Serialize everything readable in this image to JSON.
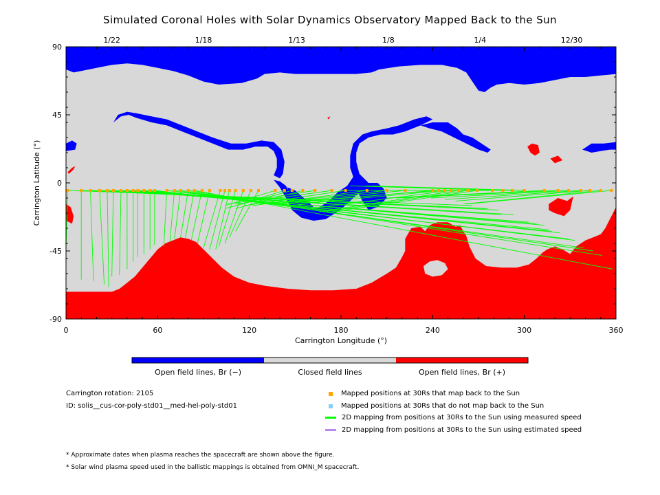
{
  "chart_data": {
    "type": "scatter",
    "title": "Simulated Coronal Holes with Solar Dynamics Observatory Mapped Back to the Sun",
    "xlabel": "Carrington Longitude (°)",
    "ylabel": "Carrington Latitude (°)",
    "xlim": [
      0,
      360
    ],
    "ylim": [
      -90,
      90
    ],
    "xticks": [
      "0",
      "60",
      "120",
      "180",
      "240",
      "300",
      "360"
    ],
    "yticks": [
      "90",
      "45",
      "0",
      "-45",
      "-90"
    ],
    "date_ticks": [
      {
        "label": "1/22",
        "lon": 30
      },
      {
        "label": "1/18",
        "lon": 90
      },
      {
        "label": "1/13",
        "lon": 151
      },
      {
        "label": "1/8",
        "lon": 211
      },
      {
        "label": "1/4",
        "lon": 271
      },
      {
        "label": "12/30",
        "lon": 331
      }
    ],
    "colors": {
      "open_negative": "#0000ff",
      "closed": "#d8d8d8",
      "open_positive": "#ff0000",
      "mapped_marker": "#ffa500",
      "unmapped_marker": "#87cefa",
      "measured_line": "#00ff00",
      "estimated_line": "#bb88ee"
    },
    "colorbar": {
      "labels": [
        "Open field lines, Br (−)",
        "Closed field lines",
        "Open field lines, Br (+)"
      ]
    },
    "series": [
      {
        "name": "Mapped positions at 30Rs that map back to the Sun",
        "marker": "square",
        "points_at_30Rs": [
          [
            1,
            -5
          ],
          [
            10,
            -5
          ],
          [
            16,
            -5
          ],
          [
            22,
            -5
          ],
          [
            27,
            -5
          ],
          [
            31,
            -5
          ],
          [
            36,
            -5
          ],
          [
            40,
            -5
          ],
          [
            44,
            -5
          ],
          [
            47,
            -5
          ],
          [
            51,
            -5
          ],
          [
            55,
            -5
          ],
          [
            58,
            -5
          ],
          [
            66,
            -5
          ],
          [
            71,
            -5
          ],
          [
            75,
            -5
          ],
          [
            80,
            -5
          ],
          [
            84,
            -5
          ],
          [
            89,
            -5
          ],
          [
            94,
            -5
          ],
          [
            101,
            -5
          ],
          [
            104,
            -5
          ],
          [
            107,
            -5
          ],
          [
            111,
            -5
          ],
          [
            116,
            -5
          ],
          [
            121,
            -5
          ],
          [
            126,
            -5
          ],
          [
            137,
            -5
          ],
          [
            143,
            -5
          ],
          [
            148,
            -5
          ],
          [
            155,
            -5
          ],
          [
            163,
            -5
          ],
          [
            174,
            -5
          ],
          [
            183,
            -5
          ],
          [
            197,
            -5
          ],
          [
            210,
            -5
          ],
          [
            222,
            -5
          ],
          [
            240,
            -5
          ],
          [
            244,
            -5
          ],
          [
            248,
            -5
          ],
          [
            252,
            -5
          ],
          [
            257,
            -5
          ],
          [
            263,
            -5
          ],
          [
            269,
            -5
          ],
          [
            279,
            -5
          ],
          [
            286,
            -5
          ],
          [
            292,
            -5
          ],
          [
            300,
            -5
          ],
          [
            313,
            -5
          ],
          [
            322,
            -5
          ],
          [
            329,
            -5
          ],
          [
            337,
            -5
          ],
          [
            343,
            -5
          ],
          [
            350,
            -5
          ],
          [
            357,
            -5
          ]
        ],
        "sun_footpoints": [
          [
            0,
            -45
          ],
          [
            10,
            -64
          ],
          [
            18,
            -65
          ],
          [
            25,
            -67
          ],
          [
            28,
            -69
          ],
          [
            30,
            -62
          ],
          [
            35,
            -61
          ],
          [
            40,
            -57
          ],
          [
            44,
            -52
          ],
          [
            47,
            -49
          ],
          [
            51,
            -47
          ],
          [
            55,
            -44
          ],
          [
            58,
            -41
          ],
          [
            64,
            -42
          ],
          [
            68,
            -39
          ],
          [
            71,
            -37
          ],
          [
            75,
            -36
          ],
          [
            78,
            -37
          ],
          [
            82,
            -38
          ],
          [
            86,
            -40
          ],
          [
            90,
            -43
          ],
          [
            94,
            -44
          ],
          [
            98,
            -44
          ],
          [
            100,
            -42
          ],
          [
            104,
            -40
          ],
          [
            107,
            -36
          ],
          [
            111,
            -32
          ],
          [
            104,
            -15
          ],
          [
            111,
            -15
          ],
          [
            104,
            -17
          ],
          [
            111,
            -17
          ],
          [
            106,
            -14
          ],
          [
            111,
            -14
          ],
          [
            117,
            -15
          ],
          [
            122,
            -15
          ],
          [
            127,
            -14
          ],
          [
            132,
            -14
          ],
          [
            140,
            -14
          ],
          [
            144,
            -13
          ],
          [
            152,
            -14
          ],
          [
            160,
            -17
          ],
          [
            166,
            -19
          ],
          [
            170,
            -19
          ],
          [
            175,
            -19
          ],
          [
            180,
            -5
          ],
          [
            186,
            -2
          ],
          [
            196,
            -2
          ],
          [
            201,
            -2
          ],
          [
            210,
            -10
          ],
          [
            216,
            -10
          ],
          [
            239,
            -10
          ],
          [
            248,
            -11
          ],
          [
            255,
            -12
          ],
          [
            260,
            -14
          ],
          [
            262,
            -14
          ],
          [
            266,
            -15
          ],
          [
            274,
            -17
          ],
          [
            276,
            -17
          ],
          [
            283,
            -18
          ],
          [
            285,
            -21
          ],
          [
            293,
            -21
          ],
          [
            303,
            -26
          ],
          [
            308,
            -27
          ],
          [
            313,
            -28
          ],
          [
            316,
            -31
          ],
          [
            318,
            -32
          ],
          [
            323,
            -33
          ],
          [
            329,
            -37
          ],
          [
            333,
            -38
          ],
          [
            339,
            -43
          ],
          [
            345,
            -45
          ],
          [
            351,
            -48
          ],
          [
            358,
            -57
          ]
        ]
      },
      {
        "name": "Mapped positions at 30Rs that do not map back to the Sun",
        "marker": "square",
        "points_at_30Rs": []
      },
      {
        "name": "2D mapping from positions at 30Rs to the Sun using measured speed",
        "marker": "line"
      },
      {
        "name": "2D mapping from positions at 30Rs to the Sun using estimated speed",
        "marker": "line"
      }
    ]
  },
  "info": {
    "carrington_rotation": "Carrington rotation: 2105",
    "model_id": "ID: solis__cus-cor-poly-std01__med-hel-poly-std01"
  },
  "notes": [
    "* Approximate dates when plasma reaches the spacecraft are shown above the figure.",
    "* Solar wind plasma speed used in the ballistic mappings is obtained from OMNI_M spacecraft."
  ]
}
